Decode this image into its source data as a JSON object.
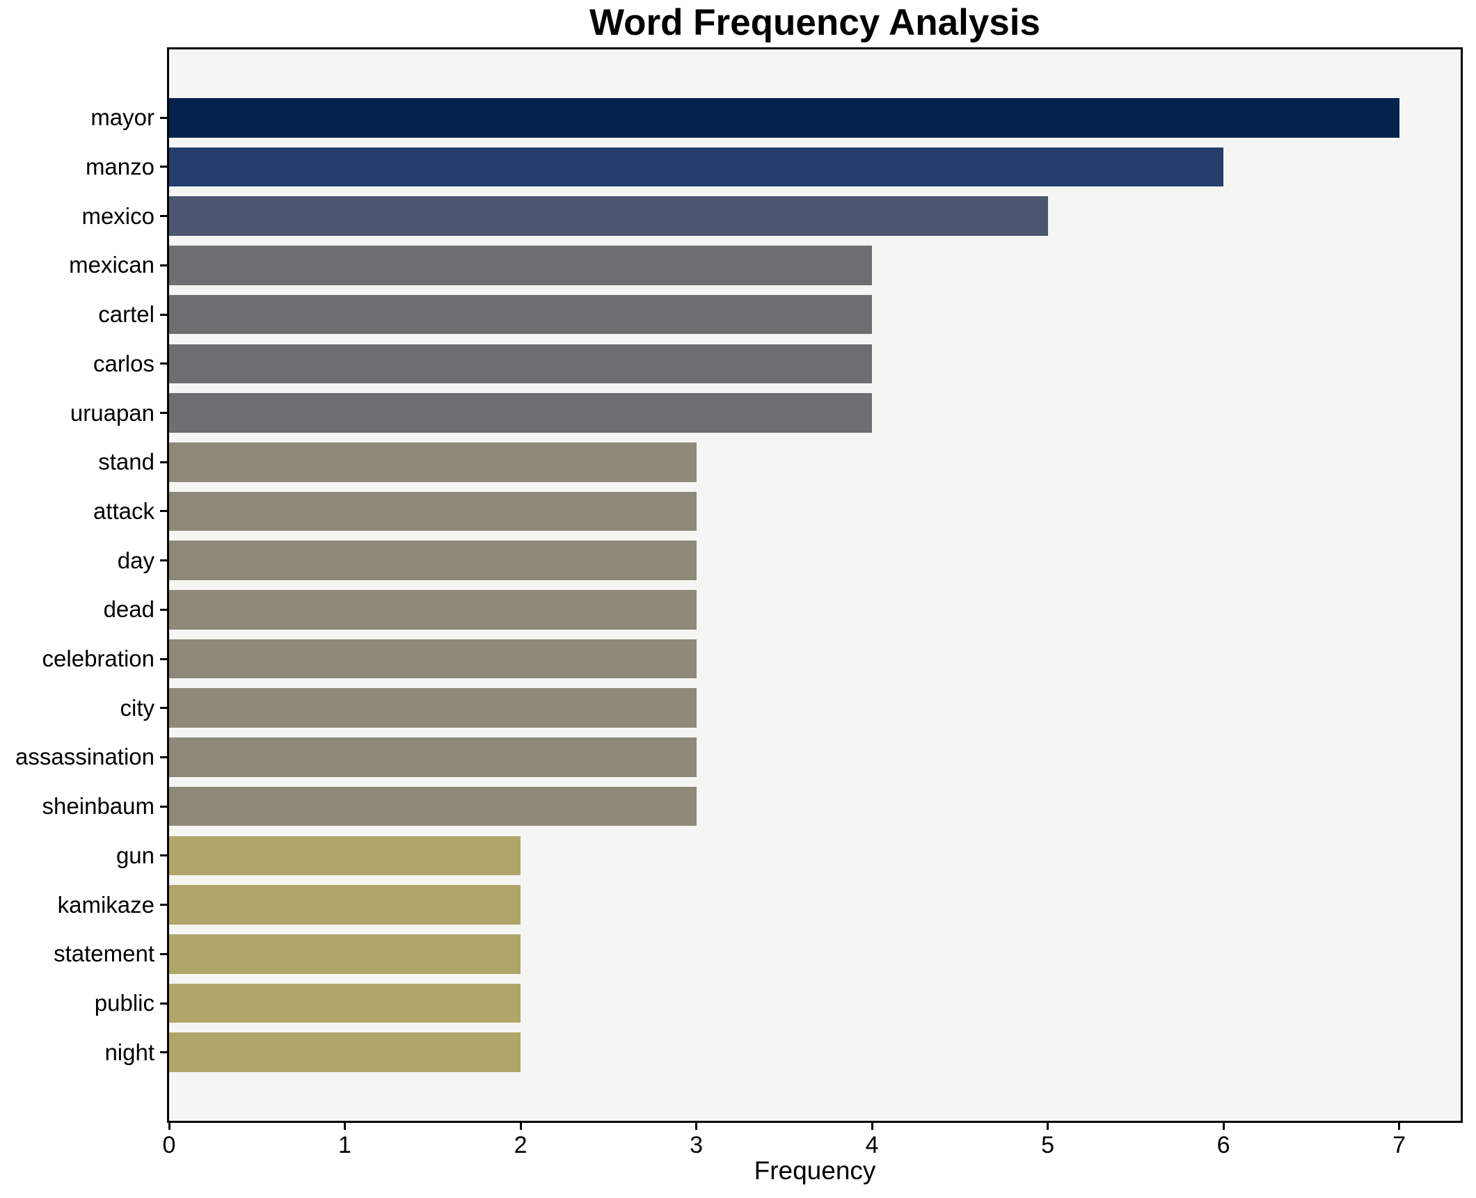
{
  "chart_data": {
    "type": "bar",
    "orientation": "horizontal",
    "title": "Word Frequency Analysis",
    "xlabel": "Frequency",
    "ylabel": "",
    "categories": [
      "mayor",
      "manzo",
      "mexico",
      "mexican",
      "cartel",
      "carlos",
      "uruapan",
      "stand",
      "attack",
      "day",
      "dead",
      "celebration",
      "city",
      "assassination",
      "sheinbaum",
      "gun",
      "kamikaze",
      "statement",
      "public",
      "night"
    ],
    "values": [
      7,
      6,
      5,
      4,
      4,
      4,
      4,
      3,
      3,
      3,
      3,
      3,
      3,
      3,
      3,
      2,
      2,
      2,
      2,
      2
    ],
    "xticks": [
      0,
      1,
      2,
      3,
      4,
      5,
      6,
      7
    ],
    "xlim": [
      0,
      7.35
    ],
    "grid": false,
    "legend": null,
    "value_colors": {
      "7": "#02234e",
      "6": "#233e6c",
      "5": "#4d5670",
      "4": "#6c6e70",
      "3": "#8e8978",
      "2": "#b1a66a"
    }
  },
  "colors": {
    "figure_bg": "#ffffff",
    "plot_bg": "#f5f5f3",
    "spine": "#000000",
    "text": "#000000"
  }
}
